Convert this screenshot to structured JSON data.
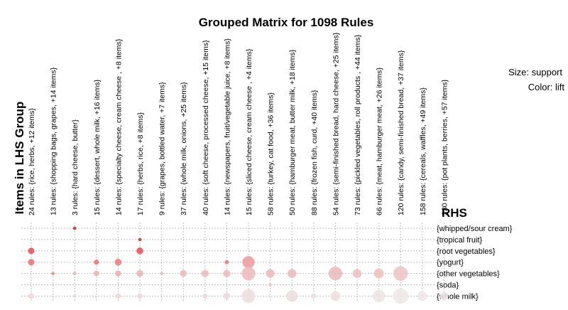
{
  "chart_data": {
    "type": "grouped-matrix-bubble",
    "title": "Grouped Matrix for 1098 Rules",
    "ylabel": "Items in LHS Group",
    "rhs_label": "RHS",
    "legend": {
      "size": "Size: support",
      "color": "Color: lift"
    },
    "lhs_groups": [
      "24 rules: {rice, herbs, +12 items}",
      "13 rules: {shopping bags, grapes, +14 items}",
      "3 rules: {hard cheese, butter}",
      "15 rules: {dessert, whole milk, +16 items}",
      "14 rules: {specialty cheese, cream cheese , +8 items}",
      "17 rules: {herbs, rice, +8 items}",
      "9 rules: {grapes, bottled water, +7 items}",
      "37 rules: {whole milk, onions, +25 items}",
      "40 rules: {soft cheese, processed cheese, +15 items}",
      "14 rules: {newspapers, fruit/vegetable juice, +8 items}",
      "15 rules: {sliced cheese, cream cheese , +4 items}",
      "58 rules: {turkey, cat food, +36 items}",
      "50 rules: {hamburger meat, butter milk, +18 items}",
      "88 rules: {frozen fish, curd, +40 items}",
      "54 rules: {semi-finished bread, hard cheese, +25 items}",
      "73 rules: {pickled vegetables, roll products , +44 items}",
      "66 rules: {meat, hamburger meat, +26 items}",
      "120 rules: {candy, semi-finished bread, +37 items}",
      "158 rules: {cereals, waffles, +49 items}",
      "230 rules: {pot plants, berries, +57 items}"
    ],
    "rhs_items": [
      "{whipped/sour cream}",
      "{tropical fruit}",
      "{root vegetables}",
      "{yogurt}",
      "{other vegetables}",
      "{soda}",
      "{whole milk}"
    ],
    "bubbles": [
      {
        "col": 2,
        "row": 0,
        "size": 0.12,
        "lift": 1.0
      },
      {
        "col": 5,
        "row": 1,
        "size": 0.12,
        "lift": 0.95
      },
      {
        "col": 0,
        "row": 2,
        "size": 0.28,
        "lift": 0.75
      },
      {
        "col": 5,
        "row": 2,
        "size": 0.3,
        "lift": 0.75
      },
      {
        "col": 0,
        "row": 3,
        "size": 0.28,
        "lift": 0.6
      },
      {
        "col": 3,
        "row": 3,
        "size": 0.22,
        "lift": 0.6
      },
      {
        "col": 4,
        "row": 3,
        "size": 0.3,
        "lift": 0.55
      },
      {
        "col": 9,
        "row": 3,
        "size": 0.18,
        "lift": 0.55
      },
      {
        "col": 10,
        "row": 3,
        "size": 0.55,
        "lift": 0.4
      },
      {
        "col": 1,
        "row": 4,
        "size": 0.14,
        "lift": 0.45
      },
      {
        "col": 2,
        "row": 4,
        "size": 0.1,
        "lift": 0.3
      },
      {
        "col": 3,
        "row": 4,
        "size": 0.24,
        "lift": 0.3
      },
      {
        "col": 4,
        "row": 4,
        "size": 0.26,
        "lift": 0.3
      },
      {
        "col": 5,
        "row": 4,
        "size": 0.3,
        "lift": 0.28
      },
      {
        "col": 6,
        "row": 4,
        "size": 0.12,
        "lift": 0.25
      },
      {
        "col": 7,
        "row": 4,
        "size": 0.3,
        "lift": 0.25
      },
      {
        "col": 8,
        "row": 4,
        "size": 0.32,
        "lift": 0.25
      },
      {
        "col": 9,
        "row": 4,
        "size": 0.32,
        "lift": 0.25
      },
      {
        "col": 10,
        "row": 4,
        "size": 0.62,
        "lift": 0.25
      },
      {
        "col": 11,
        "row": 4,
        "size": 0.38,
        "lift": 0.25
      },
      {
        "col": 12,
        "row": 4,
        "size": 0.4,
        "lift": 0.25
      },
      {
        "col": 14,
        "row": 4,
        "size": 0.62,
        "lift": 0.25
      },
      {
        "col": 15,
        "row": 4,
        "size": 0.4,
        "lift": 0.22
      },
      {
        "col": 16,
        "row": 4,
        "size": 0.44,
        "lift": 0.22
      },
      {
        "col": 17,
        "row": 4,
        "size": 0.66,
        "lift": 0.2
      },
      {
        "col": 11,
        "row": 5,
        "size": 0.1,
        "lift": 0.2
      },
      {
        "col": 0,
        "row": 6,
        "size": 0.26,
        "lift": 0.1
      },
      {
        "col": 2,
        "row": 6,
        "size": 0.12,
        "lift": 0.1
      },
      {
        "col": 4,
        "row": 6,
        "size": 0.24,
        "lift": 0.1
      },
      {
        "col": 5,
        "row": 6,
        "size": 0.24,
        "lift": 0.1
      },
      {
        "col": 8,
        "row": 6,
        "size": 0.22,
        "lift": 0.1
      },
      {
        "col": 9,
        "row": 6,
        "size": 0.3,
        "lift": 0.1
      },
      {
        "col": 10,
        "row": 6,
        "size": 0.62,
        "lift": 0.08
      },
      {
        "col": 12,
        "row": 6,
        "size": 0.52,
        "lift": 0.08
      },
      {
        "col": 13,
        "row": 6,
        "size": 0.22,
        "lift": 0.08
      },
      {
        "col": 14,
        "row": 6,
        "size": 0.44,
        "lift": 0.06
      },
      {
        "col": 16,
        "row": 6,
        "size": 0.56,
        "lift": 0.05
      },
      {
        "col": 17,
        "row": 6,
        "size": 0.7,
        "lift": 0.04
      },
      {
        "col": 18,
        "row": 6,
        "size": 0.44,
        "lift": 0.04
      },
      {
        "col": 19,
        "row": 6,
        "size": 0.38,
        "lift": 0.03
      }
    ],
    "colors": {
      "high_lift": "#e41a1c",
      "low_lift": "#eeeeee",
      "grid": "#bdbdbd"
    },
    "grid": true
  }
}
